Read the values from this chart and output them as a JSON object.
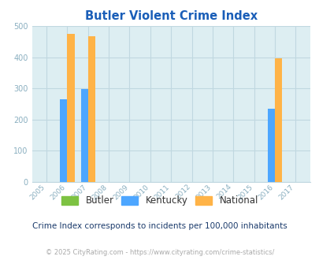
{
  "title": "Butler Violent Crime Index",
  "years": [
    2005,
    2006,
    2007,
    2008,
    2009,
    2010,
    2011,
    2012,
    2013,
    2014,
    2015,
    2016,
    2017
  ],
  "kentucky": {
    "2006": 264,
    "2007": 298,
    "2016": 234
  },
  "national": {
    "2006": 474,
    "2007": 467,
    "2016": 397
  },
  "butler": {},
  "butler_color": "#7dc242",
  "kentucky_color": "#4da6ff",
  "national_color": "#ffb347",
  "bg_color": "#ddeef2",
  "ylim": [
    0,
    500
  ],
  "yticks": [
    0,
    100,
    200,
    300,
    400,
    500
  ],
  "bar_width": 0.35,
  "title_color": "#1a5eb8",
  "subtitle": "Crime Index corresponds to incidents per 100,000 inhabitants",
  "subtitle_color": "#1a3a6b",
  "footer": "© 2025 CityRating.com - https://www.cityrating.com/crime-statistics/",
  "footer_color": "#aaaaaa",
  "grid_color": "#c0d8e0",
  "tick_color": "#8aafc0",
  "legend_text_color": "#333333"
}
